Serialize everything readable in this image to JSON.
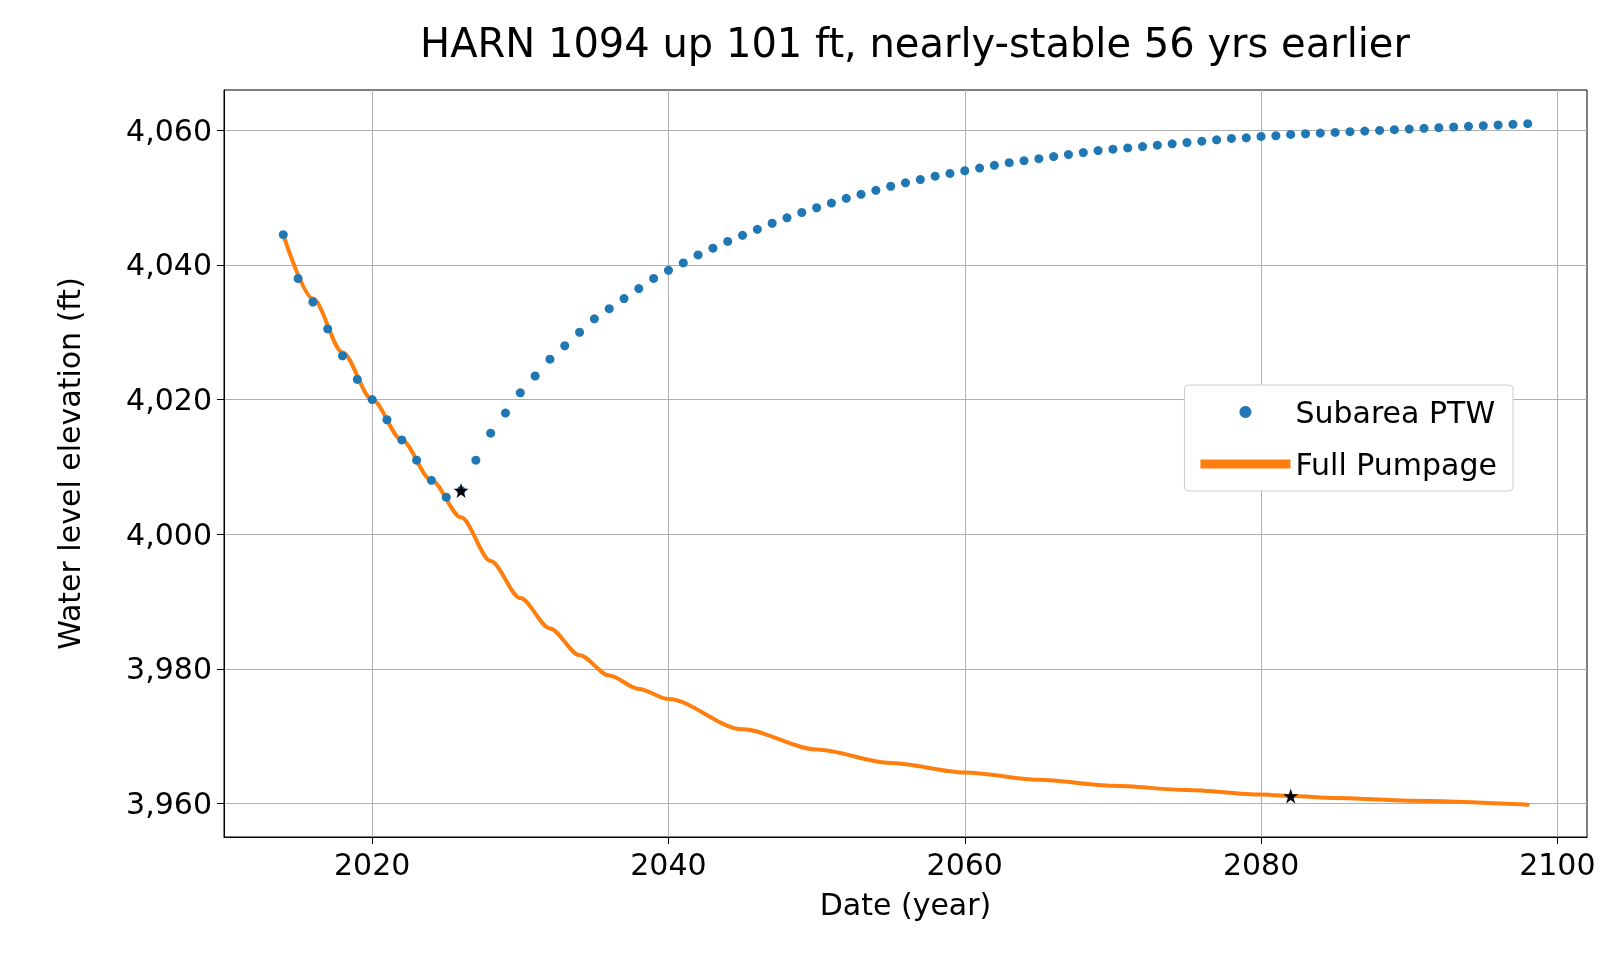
{
  "chart_data": {
    "type": "scatter",
    "title": "HARN 1094 up 101 ft, nearly-stable 56 yrs earlier",
    "xlabel": "Date (year)",
    "ylabel": "Water level elevation (ft)",
    "xlim": [
      2010,
      2102
    ],
    "xticks": [
      2020,
      2040,
      2060,
      2080,
      2100
    ],
    "ylim": [
      3955,
      4066
    ],
    "yticks": [
      {
        "value": 3960,
        "label": "3,960"
      },
      {
        "value": 3980,
        "label": "3,980"
      },
      {
        "value": 4000,
        "label": "4,000"
      },
      {
        "value": 4020,
        "label": "4,020"
      },
      {
        "value": 4040,
        "label": "4,040"
      },
      {
        "value": 4060,
        "label": "4,060"
      }
    ],
    "grid": true,
    "legend": "right",
    "series": [
      {
        "name": "Subarea PTW",
        "marker": "circle",
        "color": "#1f77b4",
        "x": [
          2014,
          2015,
          2016,
          2017,
          2018,
          2019,
          2020,
          2021,
          2022,
          2023,
          2024,
          2025,
          2026,
          2027,
          2028,
          2029,
          2030,
          2031,
          2032,
          2033,
          2034,
          2035,
          2036,
          2037,
          2038,
          2039,
          2040,
          2041,
          2042,
          2043,
          2044,
          2045,
          2046,
          2047,
          2048,
          2049,
          2050,
          2051,
          2052,
          2053,
          2054,
          2055,
          2056,
          2057,
          2058,
          2059,
          2060,
          2061,
          2062,
          2063,
          2064,
          2065,
          2066,
          2067,
          2068,
          2069,
          2070,
          2071,
          2072,
          2073,
          2074,
          2075,
          2076,
          2077,
          2078,
          2079,
          2080,
          2081,
          2082,
          2083,
          2084,
          2085,
          2086,
          2087,
          2088,
          2089,
          2090,
          2091,
          2092,
          2093,
          2094,
          2095,
          2096,
          2097,
          2098
        ],
        "values": [
          4044.5,
          4038,
          4034.5,
          4030.5,
          4026.5,
          4023,
          4020,
          4017,
          4014,
          4011,
          4008,
          4005.5,
          4006.5,
          4011,
          4015,
          4018,
          4021,
          4023.5,
          4026,
          4028,
          4030,
          4032,
          4033.5,
          4035,
          4036.5,
          4038,
          4039.2,
          4040.3,
          4041.5,
          4042.5,
          4043.5,
          4044.4,
          4045.3,
          4046.2,
          4047,
          4047.8,
          4048.5,
          4049.2,
          4049.9,
          4050.5,
          4051.1,
          4051.7,
          4052.2,
          4052.7,
          4053.2,
          4053.6,
          4054,
          4054.4,
          4054.8,
          4055.2,
          4055.5,
          4055.8,
          4056.1,
          4056.4,
          4056.7,
          4057,
          4057.2,
          4057.4,
          4057.6,
          4057.8,
          4058,
          4058.2,
          4058.4,
          4058.6,
          4058.8,
          4058.9,
          4059.1,
          4059.2,
          4059.4,
          4059.5,
          4059.6,
          4059.7,
          4059.8,
          4059.9,
          4060,
          4060.1,
          4060.2,
          4060.3,
          4060.4,
          4060.5,
          4060.6,
          4060.7,
          4060.8,
          4060.9,
          4061
        ]
      },
      {
        "name": "Full Pumpage",
        "type": "line",
        "marker": "none",
        "line_style": "solid",
        "color": "#ff7f0e",
        "x": [
          2014,
          2016,
          2018,
          2020,
          2022,
          2024,
          2026,
          2028,
          2030,
          2032,
          2034,
          2036,
          2038,
          2040,
          2045,
          2050,
          2055,
          2060,
          2065,
          2070,
          2075,
          2080,
          2082,
          2085,
          2090,
          2098
        ],
        "values": [
          4044.5,
          4035,
          4027,
          4020,
          4014,
          4008,
          4002.5,
          3996,
          3990.5,
          3986,
          3982,
          3979,
          3977,
          3975.5,
          3971,
          3968,
          3966,
          3964.6,
          3963.5,
          3962.6,
          3962,
          3961.3,
          3961.1,
          3960.8,
          3960.4,
          3959.8
        ]
      },
      {
        "marker": "star",
        "color": "#000000",
        "x": [
          2026,
          2082
        ],
        "values": [
          4006.5,
          3961.1
        ]
      }
    ]
  }
}
